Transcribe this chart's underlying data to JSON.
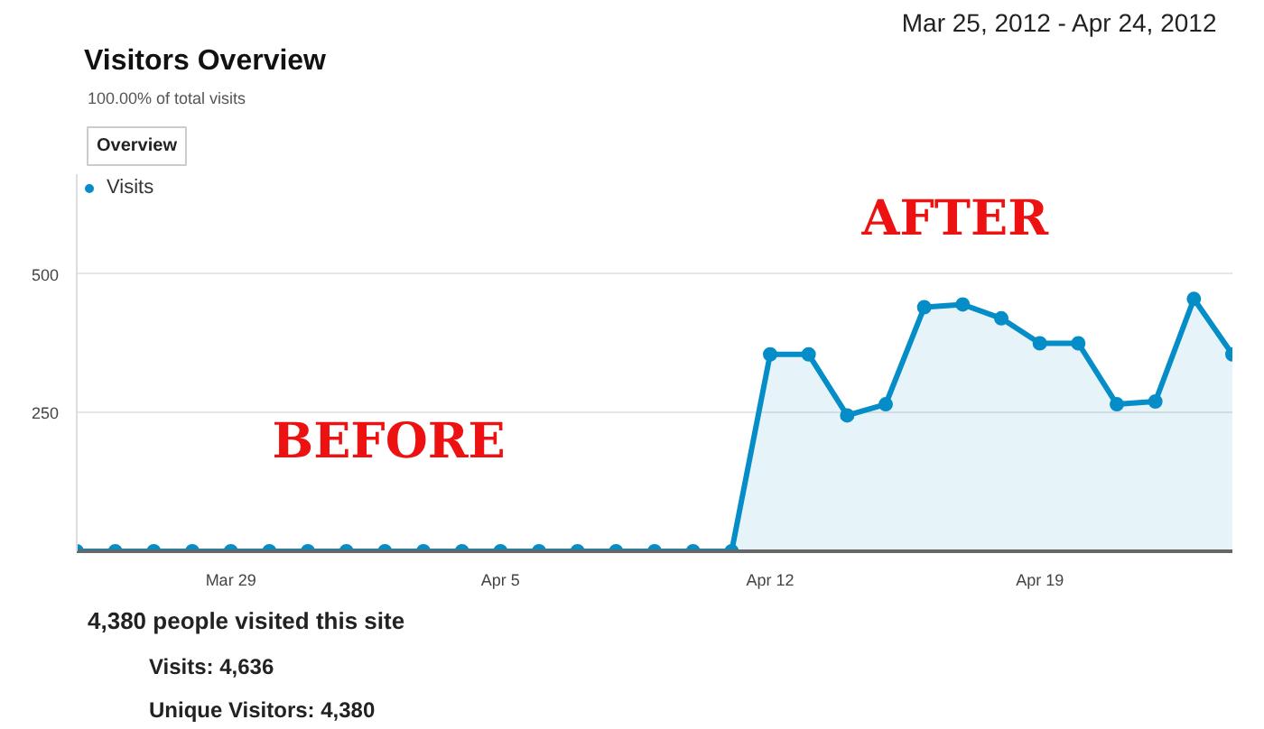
{
  "chart_data": {
    "type": "area",
    "title": "Visitors Overview",
    "subtitle": "Mar 25, 2012 - Apr 24, 2012",
    "annotations": [
      "100.00% of total visits",
      "Overview",
      "4,380 people visited this site",
      "Visits: 4,636",
      "Unique Visitors: 4,380",
      "BEFORE",
      "AFTER"
    ],
    "x": [
      "2012-03-25",
      "2012-03-26",
      "2012-03-27",
      "2012-03-28",
      "2012-03-29",
      "2012-03-30",
      "2012-03-31",
      "2012-04-01",
      "2012-04-02",
      "2012-04-03",
      "2012-04-04",
      "2012-04-05",
      "2012-04-06",
      "2012-04-07",
      "2012-04-08",
      "2012-04-09",
      "2012-04-10",
      "2012-04-11",
      "2012-04-12",
      "2012-04-13",
      "2012-04-14",
      "2012-04-15",
      "2012-04-16",
      "2012-04-17",
      "2012-04-18",
      "2012-04-19",
      "2012-04-20",
      "2012-04-21",
      "2012-04-22",
      "2012-04-23",
      "2012-04-24"
    ],
    "series": [
      {
        "name": "Visits",
        "color": "#058dc7",
        "values": [
          0,
          0,
          0,
          0,
          0,
          0,
          0,
          0,
          0,
          0,
          0,
          0,
          0,
          0,
          0,
          0,
          0,
          0,
          355,
          355,
          245,
          265,
          440,
          445,
          420,
          375,
          375,
          265,
          270,
          455,
          355
        ]
      }
    ],
    "xlim": [
      "2012-03-25",
      "2012-04-24"
    ],
    "xticks": [
      {
        "value": "2012-03-29",
        "label": "Mar 29"
      },
      {
        "value": "2012-04-05",
        "label": "Apr 5"
      },
      {
        "value": "2012-04-12",
        "label": "Apr 12"
      },
      {
        "value": "2012-04-19",
        "label": "Apr 19"
      }
    ],
    "ylim": [
      0,
      680
    ],
    "yticks": [
      250,
      500
    ],
    "grid": "y",
    "legend": "top left",
    "marker": "circle"
  }
}
